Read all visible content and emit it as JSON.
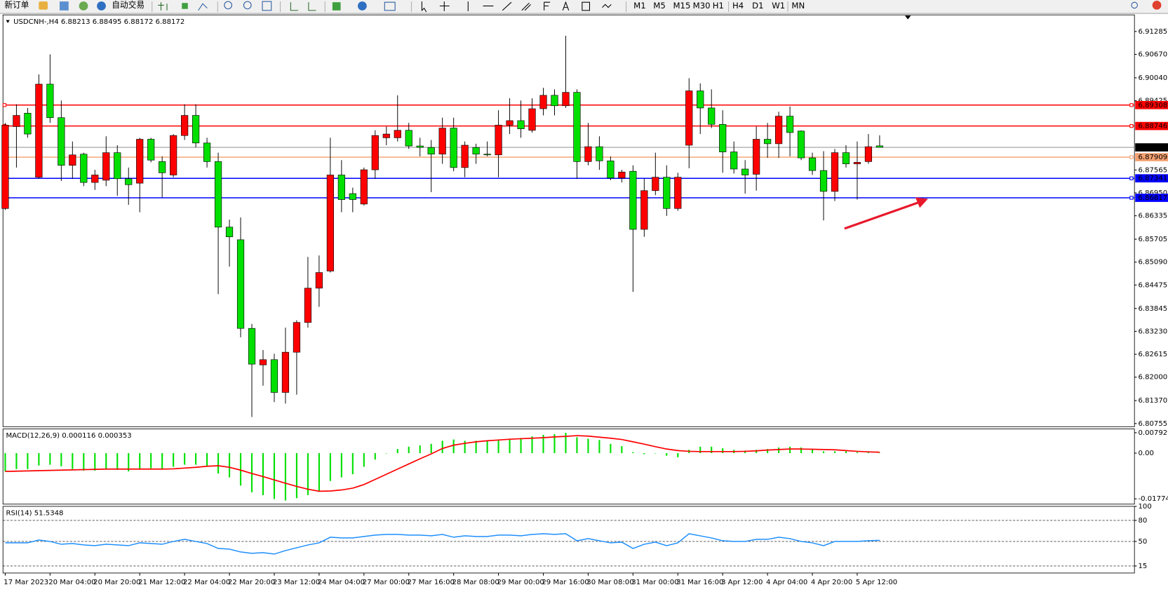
{
  "toolbar": {
    "new_order": "新订单",
    "auto_trade": "自动交易",
    "periods": [
      "M1",
      "M5",
      "M15",
      "M30",
      "H1",
      "H4",
      "D1",
      "W1",
      "MN"
    ]
  },
  "chart_data": [
    {
      "type": "candlestick",
      "title": "USDCNH-,H4  6.88213 6.88495 6.88172 6.88172",
      "categories": [
        "17 Mar 2023",
        null,
        null,
        null,
        "20 Mar 04:00",
        null,
        null,
        null,
        "20 Mar 20:00",
        null,
        null,
        null,
        "21 Mar 12:00",
        null,
        null,
        null,
        "22 Mar 04:00",
        null,
        null,
        null,
        "22 Mar 20:00",
        null,
        null,
        null,
        "23 Mar 12:00",
        null,
        null,
        null,
        "24 Mar 04:00",
        null,
        null,
        null,
        "27 Mar 00:00",
        null,
        null,
        null,
        "27 Mar 16:00",
        null,
        null,
        null,
        "28 Mar 08:00",
        null,
        null,
        null,
        "29 Mar 00:00",
        null,
        null,
        null,
        "29 Mar 16:00",
        null,
        null,
        null,
        "30 Mar 08:00",
        null,
        null,
        null,
        "31 Mar 00:00",
        null,
        null,
        null,
        "31 Mar 16:00",
        null,
        null,
        null,
        "3 Apr 12:00",
        null,
        null,
        null,
        "4 Apr 04:00",
        null,
        null,
        null,
        "4 Apr 20:00",
        null,
        null,
        null,
        "5 Apr 12:00",
        null,
        null
      ],
      "open": [
        6.8653,
        6.8873,
        6.8909,
        6.8737,
        6.8987,
        6.8897,
        6.8769,
        6.8799,
        6.8723,
        6.8729,
        6.8803,
        6.8733,
        6.8721,
        6.8839,
        6.8779,
        6.8743,
        6.8849,
        6.8903,
        6.8829,
        6.8779,
        6.8603,
        6.8569,
        6.8331,
        6.8233,
        6.8247,
        6.8159,
        6.8267,
        6.8347,
        6.8439,
        6.8485,
        6.8743,
        6.8693,
        6.8665,
        6.8757,
        6.8843,
        6.8843,
        6.8863,
        6.8821,
        6.8817,
        6.8799,
        6.8869,
        6.8763,
        6.8817,
        6.8799,
        6.8797,
        6.8877,
        6.8889,
        6.8863,
        6.8921,
        6.8957,
        6.8929,
        6.8965,
        6.8779,
        6.8819,
        6.8781,
        6.8735,
        6.8753,
        6.8597,
        6.8701,
        6.8737,
        6.8653,
        6.8823,
        6.8969,
        6.8923,
        6.8879,
        6.8805,
        6.8759,
        6.8745,
        6.8839,
        6.8827,
        6.8901,
        6.8861,
        6.8789,
        6.8755,
        6.8699,
        6.8803,
        6.8773,
        6.8779,
        6.88213
      ],
      "high": [
        6.8883,
        6.8933,
        6.8923,
        6.9013,
        6.9067,
        6.8943,
        6.8833,
        6.8803,
        6.8757,
        6.8847,
        6.8823,
        6.8763,
        6.8843,
        6.8843,
        6.8793,
        6.8853,
        6.8933,
        6.8933,
        6.8843,
        6.8803,
        6.8623,
        6.8629,
        6.8343,
        6.8273,
        6.8263,
        6.8333,
        6.8353,
        6.8523,
        6.8527,
        6.8843,
        6.8783,
        6.8709,
        6.8763,
        6.8863,
        6.8873,
        6.8957,
        6.8883,
        6.8843,
        6.8837,
        6.8897,
        6.8897,
        6.8833,
        6.8827,
        6.8833,
        6.8917,
        6.8949,
        6.8943,
        6.8949,
        6.8977,
        6.8973,
        6.9117,
        6.8973,
        6.8883,
        6.8847,
        6.8793,
        6.8757,
        6.8769,
        6.8733,
        6.8803,
        6.8769,
        6.8749,
        6.9003,
        6.8989,
        6.8973,
        6.8917,
        6.8833,
        6.8783,
        6.8873,
        6.8883,
        6.8913,
        6.8927,
        6.8863,
        6.8803,
        6.8807,
        6.8813,
        6.8823,
        6.8833,
        6.8853,
        6.88495
      ],
      "low": [
        6.8649,
        6.8763,
        6.8843,
        6.8733,
        6.8883,
        6.8727,
        6.8733,
        6.8713,
        6.8703,
        6.8713,
        6.8687,
        6.8663,
        6.8643,
        6.8777,
        6.8683,
        6.8737,
        6.8837,
        6.8817,
        6.8763,
        6.8423,
        6.8497,
        6.8307,
        6.8093,
        6.8177,
        6.8133,
        6.8129,
        6.8153,
        6.8333,
        6.8389,
        6.8481,
        6.8643,
        6.8643,
        6.8661,
        6.8733,
        6.8823,
        6.8833,
        6.8813,
        6.8793,
        6.8697,
        6.8773,
        6.8753,
        6.8737,
        6.8773,
        6.8793,
        6.8737,
        6.8853,
        6.8843,
        6.8857,
        6.8903,
        6.8903,
        6.8923,
        6.8733,
        6.8769,
        6.8757,
        6.8729,
        6.8723,
        6.8429,
        6.8577,
        6.8689,
        6.8633,
        6.8647,
        6.8761,
        6.8853,
        6.8869,
        6.8749,
        6.8747,
        6.8693,
        6.8701,
        6.8789,
        6.8789,
        6.8793,
        6.8783,
        6.8743,
        6.8621,
        6.8673,
        6.8763,
        6.8677,
        6.8773,
        6.88172
      ],
      "close": [
        6.8877,
        6.8903,
        6.8853,
        6.8987,
        6.8897,
        6.8769,
        6.8797,
        6.8723,
        6.8743,
        6.8803,
        6.8733,
        6.8717,
        6.8839,
        6.8783,
        6.8749,
        6.8849,
        6.8903,
        6.8829,
        6.8779,
        6.8603,
        6.8577,
        6.8331,
        6.8235,
        6.8247,
        6.8159,
        6.8267,
        6.8347,
        6.8439,
        6.8481,
        6.8743,
        6.8677,
        6.8677,
        6.8757,
        6.8849,
        6.8853,
        6.8863,
        6.8821,
        6.8817,
        6.8799,
        6.8869,
        6.8763,
        6.8823,
        6.8799,
        6.8797,
        6.8877,
        6.8889,
        6.8867,
        6.8921,
        6.8957,
        6.8929,
        6.8965,
        6.8779,
        6.8819,
        6.8781,
        6.8735,
        6.8751,
        6.8597,
        6.8701,
        6.8737,
        6.8653,
        6.8737,
        6.8969,
        6.8923,
        6.8879,
        6.8805,
        6.8759,
        6.8743,
        6.8839,
        6.8827,
        6.8901,
        6.8857,
        6.8789,
        6.8755,
        6.8699,
        6.8803,
        6.8773,
        6.8777,
        6.8819,
        6.88172
      ],
      "up_color": "#ff0000",
      "down_color": "#00e000",
      "ylim": [
        6.8067,
        6.9173
      ],
      "yticks": [
        6.91285,
        {
          "value": 6.9067,
          "label": "6.90670"
        },
        {
          "value": 6.9004,
          "label": "6.90040"
        },
        6.89425,
        6.87565,
        {
          "value": 6.8695,
          "label": "6.86950"
        },
        6.86335,
        6.85705,
        {
          "value": 6.8509,
          "label": "6.85090"
        },
        6.84475,
        6.83845,
        {
          "value": 6.8323,
          "label": "6.83230"
        },
        6.82615,
        {
          "value": 6.82,
          "label": "6.82000"
        },
        {
          "value": 6.8137,
          "label": "6.81370"
        },
        6.80755
      ],
      "hlines": [
        {
          "value": 6.89308,
          "color": "#ff0000"
        },
        {
          "value": 6.88746,
          "color": "#ff0000"
        },
        {
          "value": 6.87909,
          "color": "#f4a070"
        },
        {
          "value": 6.87341,
          "color": "#0000ff"
        },
        {
          "value": 6.86817,
          "color": "#0000ff"
        }
      ],
      "last_price_line": true
    },
    {
      "type": "macd",
      "title": "MACD(12,26,9) 0.000116 0.000353",
      "values": [
        -0.0071,
        -0.0062,
        -0.0062,
        -0.0048,
        -0.0045,
        -0.0051,
        -0.0062,
        -0.0068,
        -0.0068,
        -0.0062,
        -0.0065,
        -0.0071,
        -0.0062,
        -0.0059,
        -0.0062,
        -0.0053,
        -0.0045,
        -0.0045,
        -0.0051,
        -0.0079,
        -0.0094,
        -0.0126,
        -0.0152,
        -0.0163,
        -0.0178,
        -0.0184,
        -0.0175,
        -0.0163,
        -0.0146,
        -0.0108,
        -0.0094,
        -0.0082,
        -0.0053,
        -0.0025,
        -0.0001,
        0.0016,
        0.0025,
        0.003,
        0.0036,
        0.0048,
        0.0053,
        0.0048,
        0.0048,
        0.0048,
        0.0053,
        0.0056,
        0.0059,
        0.0065,
        0.0071,
        0.0074,
        0.0079,
        0.0062,
        0.0056,
        0.0051,
        0.0036,
        0.0027,
        0.0004,
        -0.0004,
        -0.0001,
        -0.001,
        -0.0016,
        0.0013,
        0.0025,
        0.0025,
        0.0019,
        0.0013,
        0.001,
        0.0013,
        0.0016,
        0.0022,
        0.0025,
        0.0022,
        0.0016,
        0.0007,
        0.0007,
        0.0007,
        0.0004,
        0.0004,
        0.000116
      ],
      "color": "#00e000",
      "signal": [
        -0.0071,
        -0.007,
        -0.0069,
        -0.0068,
        -0.0067,
        -0.0066,
        -0.0065,
        -0.0064,
        -0.0063,
        -0.0062,
        -0.0062,
        -0.0062,
        -0.0062,
        -0.0062,
        -0.0062,
        -0.0061,
        -0.0058,
        -0.0055,
        -0.0051,
        -0.0049,
        -0.0055,
        -0.0066,
        -0.0079,
        -0.0091,
        -0.0104,
        -0.0117,
        -0.0129,
        -0.014,
        -0.0148,
        -0.0147,
        -0.0143,
        -0.0136,
        -0.0122,
        -0.0102,
        -0.0082,
        -0.0062,
        -0.0042,
        -0.0022,
        -0.0003,
        0.0018,
        0.0031,
        0.0038,
        0.0044,
        0.0048,
        0.0051,
        0.0054,
        0.0056,
        0.0058,
        0.006,
        0.0063,
        0.0065,
        0.0068,
        0.0066,
        0.0062,
        0.0058,
        0.0053,
        0.0044,
        0.0035,
        0.0025,
        0.0016,
        0.001,
        0.0007,
        0.0006,
        0.0006,
        0.0006,
        0.0006,
        0.0007,
        0.0009,
        0.0012,
        0.0014,
        0.0016,
        0.0016,
        0.0015,
        0.0014,
        0.0013,
        0.001,
        0.0007,
        0.0005,
        0.000353
      ],
      "signal_color": "#ff0000",
      "ylim": [
        -0.0198,
        0.0094
      ],
      "yticks": [
        0.007929,
        {
          "value": 0,
          "label": "0.00"
        },
        -0.017743
      ]
    },
    {
      "type": "rsi",
      "title": "RSI(14) 51.5348",
      "values": [
        48,
        48,
        48,
        52,
        50,
        46,
        47,
        45,
        44,
        46,
        45,
        44,
        48,
        47,
        46,
        50,
        53,
        50,
        47,
        40,
        39,
        35,
        33,
        34,
        32,
        37,
        41,
        45,
        48,
        56,
        55,
        55,
        57,
        59,
        60,
        60,
        59,
        59,
        58,
        60,
        56,
        58,
        57,
        57,
        59,
        59,
        58,
        60,
        61,
        60,
        61,
        51,
        54,
        51,
        48,
        49,
        40,
        46,
        49,
        44,
        48,
        61,
        58,
        55,
        51,
        50,
        50,
        53,
        53,
        56,
        54,
        50,
        48,
        44,
        50,
        50,
        50,
        51,
        51.5348
      ],
      "color": "#1e8fff",
      "ylim": [
        5,
        100
      ],
      "yticks": [
        100,
        80,
        50,
        15
      ]
    }
  ]
}
